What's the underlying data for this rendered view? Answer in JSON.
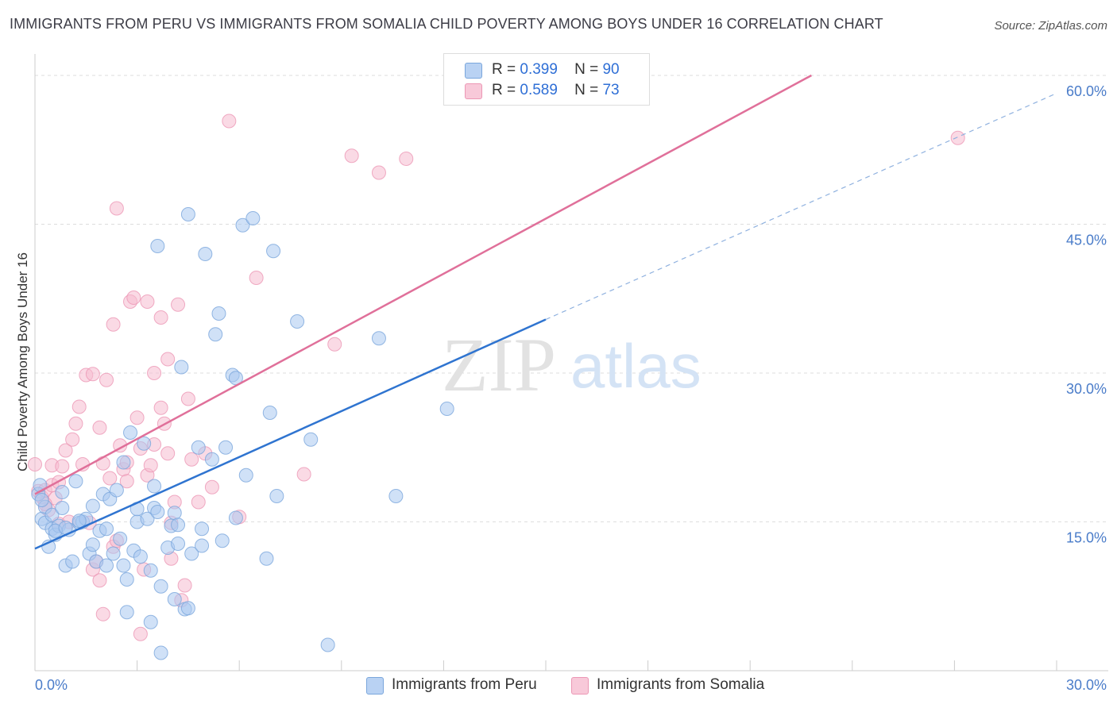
{
  "title": "IMMIGRANTS FROM PERU VS IMMIGRANTS FROM SOMALIA CHILD POVERTY AMONG BOYS UNDER 16 CORRELATION CHART",
  "source": "Source: ZipAtlas.com",
  "watermark": {
    "zip": "ZIP",
    "atlas": "atlas"
  },
  "legend": {
    "peru": {
      "r_label": "R =",
      "r_value": "0.399",
      "n_label": "N =",
      "n_value": "90"
    },
    "somalia": {
      "r_label": "R =",
      "r_value": "0.589",
      "n_label": "N =",
      "n_value": "73"
    }
  },
  "bottom_legend": {
    "peru": "Immigrants from Peru",
    "somalia": "Immigrants from Somalia"
  },
  "colors": {
    "peru_fill": "#a9c8f0",
    "peru_stroke": "#7aa6dc",
    "peru_line": "#2f74d0",
    "somalia_fill": "#f6bcd0",
    "somalia_stroke": "#ec97b5",
    "somalia_line": "#e0709a",
    "grid": "#dddddd",
    "tick_text": "#4a7cc9"
  },
  "chart_data": {
    "type": "scatter",
    "title": "IMMIGRANTS FROM PERU VS IMMIGRANTS FROM SOMALIA CHILD POVERTY AMONG BOYS UNDER 16 CORRELATION CHART",
    "xlabel": "",
    "ylabel": "Child Poverty Among Boys Under 16",
    "xlim": [
      0,
      30
    ],
    "ylim": [
      0,
      60
    ],
    "x_tick_labels": [
      {
        "value": 0,
        "label": "0.0%"
      },
      {
        "value": 30,
        "label": "30.0%"
      }
    ],
    "y_tick_labels": [
      {
        "value": 15,
        "label": "15.0%"
      },
      {
        "value": 30,
        "label": "30.0%"
      },
      {
        "value": 45,
        "label": "45.0%"
      },
      {
        "value": 60,
        "label": "60.0%"
      }
    ],
    "y_gridlines": [
      15,
      30,
      45,
      60
    ],
    "series": [
      {
        "name": "Immigrants from Peru",
        "r": 0.399,
        "n": 90,
        "trend": {
          "x0": 0,
          "y0": 12.3,
          "x1": 15,
          "y1": 35.4,
          "dashed_to_x": 30,
          "dashed_to_y": 58.2
        },
        "points": [
          [
            0.1,
            17.8
          ],
          [
            0.2,
            15.3
          ],
          [
            0.3,
            14.9
          ],
          [
            0.3,
            16.5
          ],
          [
            0.4,
            12.5
          ],
          [
            0.5,
            14.3
          ],
          [
            0.5,
            15.7
          ],
          [
            0.6,
            13.7
          ],
          [
            0.7,
            14.6
          ],
          [
            0.8,
            18.0
          ],
          [
            0.8,
            16.4
          ],
          [
            0.9,
            10.6
          ],
          [
            1.0,
            14.2
          ],
          [
            1.1,
            11.0
          ],
          [
            1.2,
            19.1
          ],
          [
            1.3,
            14.9
          ],
          [
            1.4,
            15.0
          ],
          [
            1.5,
            15.3
          ],
          [
            1.6,
            11.8
          ],
          [
            1.7,
            16.6
          ],
          [
            1.7,
            12.7
          ],
          [
            1.8,
            11.0
          ],
          [
            1.9,
            14.1
          ],
          [
            2.0,
            17.8
          ],
          [
            2.1,
            10.6
          ],
          [
            2.2,
            17.3
          ],
          [
            2.1,
            14.3
          ],
          [
            2.3,
            11.8
          ],
          [
            2.4,
            18.2
          ],
          [
            2.5,
            13.3
          ],
          [
            2.6,
            21.0
          ],
          [
            2.6,
            10.6
          ],
          [
            2.7,
            9.2
          ],
          [
            2.8,
            24.0
          ],
          [
            2.7,
            5.9
          ],
          [
            2.9,
            12.1
          ],
          [
            3.0,
            15.0
          ],
          [
            3.0,
            16.3
          ],
          [
            3.1,
            11.5
          ],
          [
            3.2,
            22.9
          ],
          [
            3.3,
            15.3
          ],
          [
            3.4,
            4.9
          ],
          [
            3.4,
            10.1
          ],
          [
            3.5,
            16.4
          ],
          [
            3.6,
            16.0
          ],
          [
            3.5,
            18.6
          ],
          [
            3.7,
            8.5
          ],
          [
            3.7,
            1.8
          ],
          [
            3.6,
            42.8
          ],
          [
            3.9,
            12.4
          ],
          [
            4.0,
            14.6
          ],
          [
            4.1,
            7.2
          ],
          [
            4.1,
            15.9
          ],
          [
            4.2,
            14.7
          ],
          [
            4.2,
            12.8
          ],
          [
            4.3,
            30.6
          ],
          [
            4.4,
            6.2
          ],
          [
            4.5,
            46.0
          ],
          [
            4.5,
            6.3
          ],
          [
            4.6,
            11.8
          ],
          [
            4.8,
            22.5
          ],
          [
            4.9,
            12.6
          ],
          [
            4.9,
            14.3
          ],
          [
            5.0,
            42.0
          ],
          [
            5.2,
            21.3
          ],
          [
            5.3,
            33.9
          ],
          [
            5.4,
            36.0
          ],
          [
            5.5,
            13.1
          ],
          [
            5.6,
            22.5
          ],
          [
            5.8,
            29.8
          ],
          [
            5.9,
            29.5
          ],
          [
            5.9,
            15.4
          ],
          [
            6.1,
            44.9
          ],
          [
            6.2,
            19.7
          ],
          [
            6.4,
            45.6
          ],
          [
            6.8,
            11.3
          ],
          [
            6.9,
            26.0
          ],
          [
            7.0,
            42.3
          ],
          [
            7.1,
            17.6
          ],
          [
            7.7,
            35.2
          ],
          [
            8.1,
            23.3
          ],
          [
            8.6,
            2.6
          ],
          [
            10.1,
            33.5
          ],
          [
            10.6,
            17.6
          ],
          [
            12.1,
            26.4
          ],
          [
            0.2,
            17.2
          ],
          [
            0.6,
            14.1
          ],
          [
            1.3,
            15.1
          ],
          [
            0.9,
            14.4
          ],
          [
            0.15,
            18.7
          ]
        ]
      },
      {
        "name": "Immigrants from Somalia",
        "r": 0.589,
        "n": 73,
        "trend": {
          "x0": 0,
          "y0": 17.8,
          "x1": 22.8,
          "y1": 60.0
        },
        "points": [
          [
            0.0,
            20.8
          ],
          [
            0.1,
            18.1
          ],
          [
            0.2,
            17.5
          ],
          [
            0.3,
            18.2
          ],
          [
            0.4,
            16.2
          ],
          [
            0.5,
            18.7
          ],
          [
            0.5,
            20.7
          ],
          [
            0.6,
            17.4
          ],
          [
            0.7,
            14.8
          ],
          [
            0.8,
            20.6
          ],
          [
            0.9,
            22.2
          ],
          [
            1.0,
            15.0
          ],
          [
            1.1,
            23.3
          ],
          [
            1.2,
            24.9
          ],
          [
            1.3,
            26.6
          ],
          [
            1.4,
            20.8
          ],
          [
            1.5,
            29.8
          ],
          [
            1.6,
            14.9
          ],
          [
            1.7,
            29.9
          ],
          [
            1.7,
            10.2
          ],
          [
            1.8,
            11.0
          ],
          [
            1.9,
            24.5
          ],
          [
            1.9,
            9.1
          ],
          [
            2.0,
            20.9
          ],
          [
            2.0,
            5.7
          ],
          [
            2.1,
            29.3
          ],
          [
            2.2,
            19.4
          ],
          [
            2.3,
            12.5
          ],
          [
            2.4,
            13.1
          ],
          [
            2.3,
            34.9
          ],
          [
            2.4,
            46.6
          ],
          [
            2.5,
            22.7
          ],
          [
            2.6,
            20.3
          ],
          [
            2.7,
            19.1
          ],
          [
            2.7,
            21.0
          ],
          [
            2.8,
            37.2
          ],
          [
            2.9,
            37.6
          ],
          [
            3.0,
            25.5
          ],
          [
            3.1,
            22.4
          ],
          [
            3.1,
            3.7
          ],
          [
            3.2,
            10.2
          ],
          [
            3.3,
            19.7
          ],
          [
            3.3,
            37.2
          ],
          [
            3.4,
            20.7
          ],
          [
            3.5,
            30.0
          ],
          [
            3.5,
            22.8
          ],
          [
            3.7,
            26.5
          ],
          [
            3.7,
            35.6
          ],
          [
            3.8,
            24.9
          ],
          [
            3.9,
            31.4
          ],
          [
            3.9,
            21.9
          ],
          [
            4.0,
            14.9
          ],
          [
            4.0,
            11.3
          ],
          [
            4.1,
            17.0
          ],
          [
            4.2,
            36.9
          ],
          [
            4.3,
            7.1
          ],
          [
            4.4,
            8.6
          ],
          [
            4.5,
            27.4
          ],
          [
            4.6,
            21.3
          ],
          [
            4.8,
            17.0
          ],
          [
            5.0,
            21.9
          ],
          [
            5.2,
            18.5
          ],
          [
            5.7,
            55.4
          ],
          [
            6.0,
            15.5
          ],
          [
            6.5,
            39.6
          ],
          [
            7.9,
            19.8
          ],
          [
            8.8,
            32.9
          ],
          [
            9.3,
            51.9
          ],
          [
            10.1,
            50.2
          ],
          [
            10.9,
            51.6
          ],
          [
            0.3,
            16.8
          ],
          [
            0.7,
            19.0
          ],
          [
            27.1,
            53.7
          ]
        ]
      }
    ]
  }
}
